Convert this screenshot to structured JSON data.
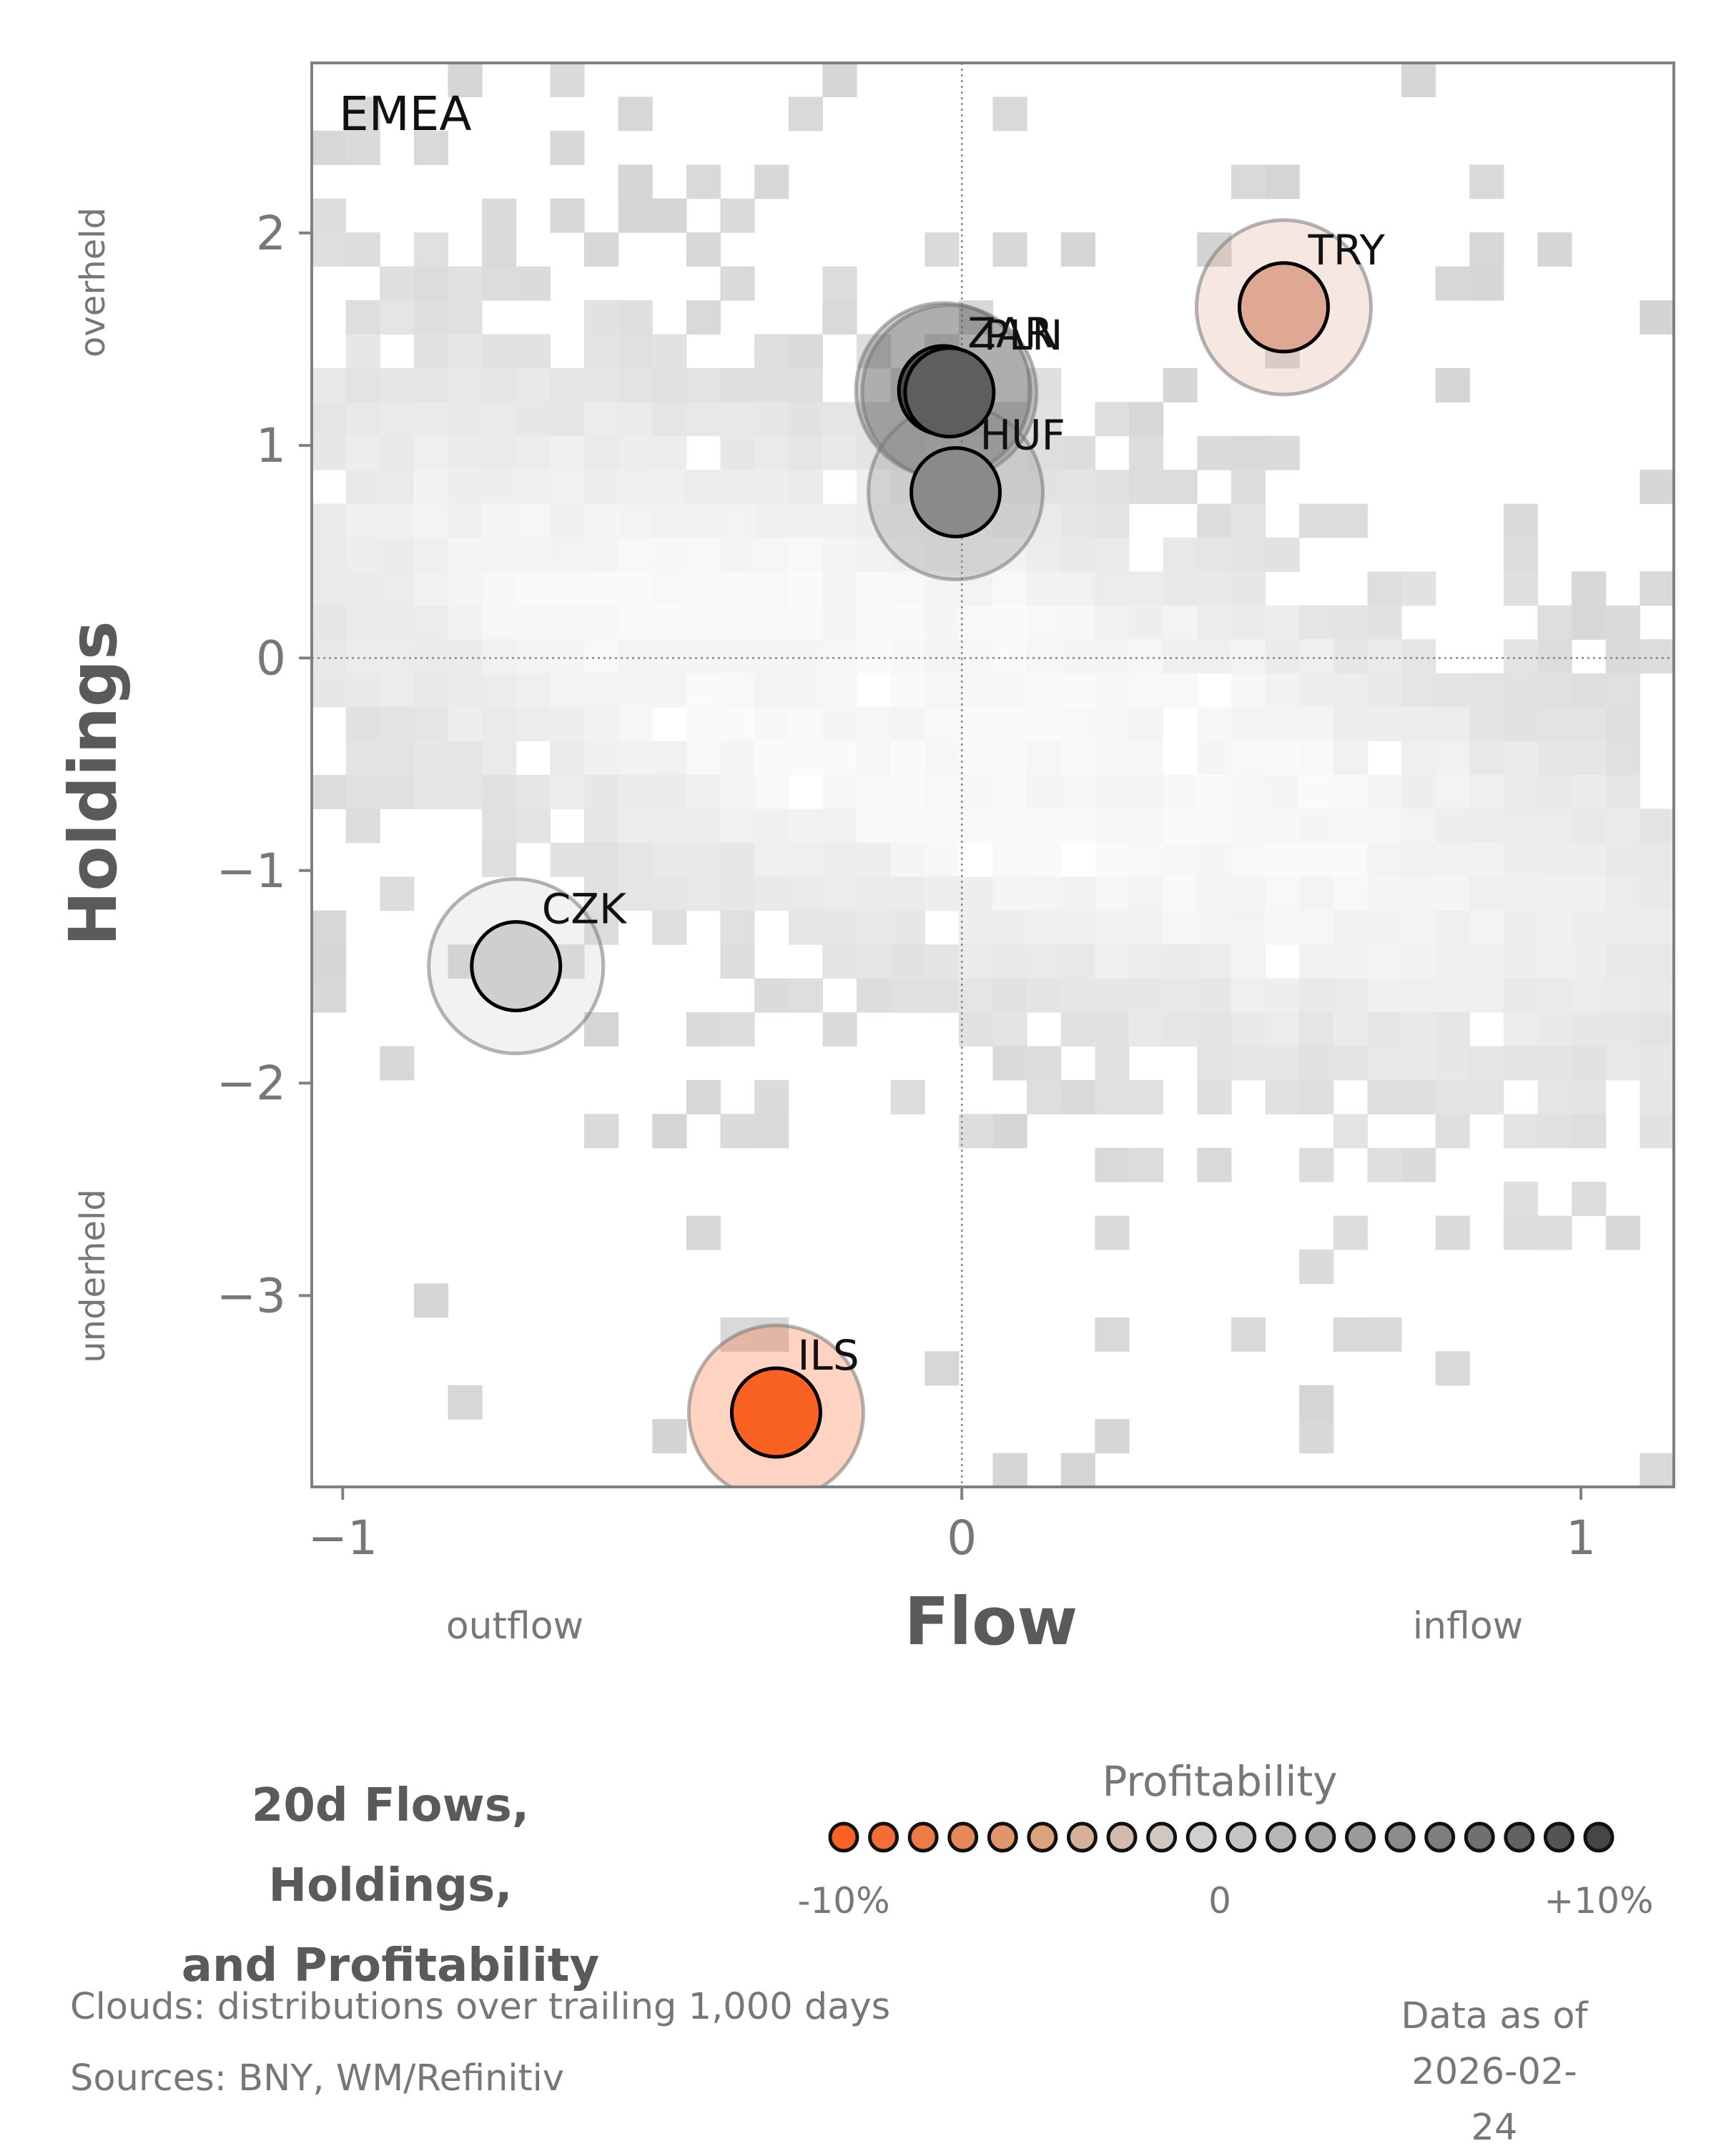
{
  "chart_data": {
    "type": "scatter",
    "panel_label": "EMEA",
    "xlabel": "Flow",
    "ylabel": "Holdings",
    "x_left_note": "outflow",
    "x_right_note": "inflow",
    "y_top_note": "overheld",
    "y_bottom_note": "underheld",
    "xlim": [
      -1.05,
      1.15
    ],
    "ylim": [
      -3.9,
      2.8
    ],
    "x_ticks": [
      {
        "value": -1,
        "label": "−1"
      },
      {
        "value": 0,
        "label": "0"
      },
      {
        "value": 1,
        "label": "1"
      }
    ],
    "y_ticks": [
      {
        "value": -3,
        "label": "−3"
      },
      {
        "value": -2,
        "label": "−2"
      },
      {
        "value": -1,
        "label": "−1"
      },
      {
        "value": 0,
        "label": "0"
      },
      {
        "value": 1,
        "label": "1"
      },
      {
        "value": 2,
        "label": "2"
      }
    ],
    "reference_lines": {
      "x": 0,
      "y": 0
    },
    "background": "2D histogram cloud of trailing distributions (grey)",
    "points": [
      {
        "label": "ZAR",
        "x": -0.03,
        "y": 1.26,
        "color": "#4a4a4c"
      },
      {
        "label": "PLN",
        "x": -0.02,
        "y": 1.25,
        "color": "#5e5e60"
      },
      {
        "label": "HUF",
        "x": -0.01,
        "y": 0.78,
        "color": "#8a8a8c"
      },
      {
        "label": "TRY",
        "x": 0.52,
        "y": 1.65,
        "color": "#dea893"
      },
      {
        "label": "CZK",
        "x": -0.72,
        "y": -1.45,
        "color": "#cfcfcf"
      },
      {
        "label": "ILS",
        "x": -0.3,
        "y": -3.55,
        "color": "#fa6224"
      }
    ]
  },
  "legend": {
    "title_line1": "20d Flows, Holdings,",
    "title_line2": "and Profitability",
    "scale_title": "Profitability",
    "scale_min_label": "-10%",
    "scale_mid_label": "0",
    "scale_max_label": "+10%",
    "swatches": [
      "#fa6224",
      "#f46d35",
      "#ee7a47",
      "#e78859",
      "#e1956b",
      "#dba27d",
      "#d5b09a",
      "#d2bbae",
      "#d0c7c1",
      "#d0d0d0",
      "#c4c4c4",
      "#b6b6b6",
      "#a8a8a8",
      "#9a9a9a",
      "#8c8c8c",
      "#7e7e7e",
      "#707070",
      "#626262",
      "#545454",
      "#464646"
    ]
  },
  "footer": {
    "clouds_note": "Clouds:  distributions over trailing 1,000 days",
    "sources_note": "Sources:  BNY, WM/Refinitiv",
    "data_as_of_label": "Data as of",
    "data_as_of_date": "2026-02-24"
  }
}
